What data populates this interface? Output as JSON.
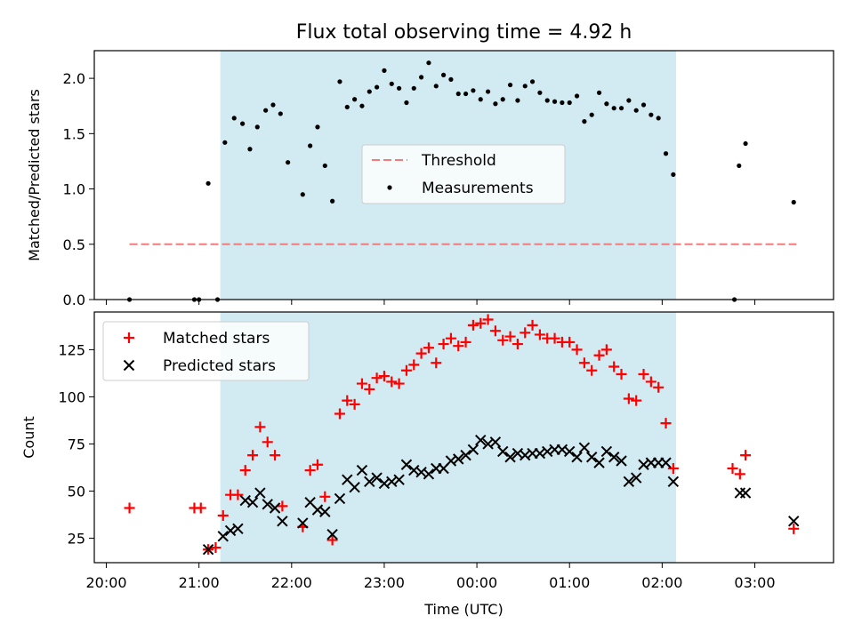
{
  "chart_data": {
    "type": "scatter",
    "title": "Flux total observing time = 4.92 h",
    "xlabel": "Time (UTC)",
    "x_unit": "hours since 20:00 UTC",
    "xlim": [
      -0.13,
      7.85
    ],
    "x_ticks": [
      {
        "value": 0,
        "label": "20:00"
      },
      {
        "value": 1,
        "label": "21:00"
      },
      {
        "value": 2,
        "label": "22:00"
      },
      {
        "value": 3,
        "label": "23:00"
      },
      {
        "value": 4,
        "label": "00:00"
      },
      {
        "value": 5,
        "label": "01:00"
      },
      {
        "value": 6,
        "label": "02:00"
      },
      {
        "value": 7,
        "label": "03:00"
      }
    ],
    "shaded_interval": {
      "start": 1.23,
      "end": 6.15,
      "color": "#add8e6"
    },
    "panels": [
      {
        "ylabel": "Matched/Predicted stars",
        "ylim": [
          0,
          2.25
        ],
        "y_ticks": [
          {
            "value": 0,
            "label": "0.0"
          },
          {
            "value": 0.5,
            "label": "0.5"
          },
          {
            "value": 1,
            "label": "1.0"
          },
          {
            "value": 1.5,
            "label": "1.5"
          },
          {
            "value": 2,
            "label": "2.0"
          }
        ],
        "legend": {
          "placement": "center",
          "entries": [
            "Threshold",
            "Measurements"
          ]
        },
        "threshold": {
          "name": "Threshold",
          "value": 0.5,
          "x_range": [
            0.25,
            7.45
          ],
          "color": "#f07c7c"
        },
        "series": [
          {
            "name": "Measurements",
            "marker": "dot",
            "color": "#000000",
            "points": [
              [
                0.25,
                0.0
              ],
              [
                0.95,
                0.0
              ],
              [
                1.0,
                0.0
              ],
              [
                1.1,
                1.05
              ],
              [
                1.2,
                0.0
              ],
              [
                1.28,
                1.42
              ],
              [
                1.38,
                1.64
              ],
              [
                1.47,
                1.59
              ],
              [
                1.55,
                1.36
              ],
              [
                1.63,
                1.56
              ],
              [
                1.72,
                1.71
              ],
              [
                1.8,
                1.76
              ],
              [
                1.88,
                1.68
              ],
              [
                1.96,
                1.24
              ],
              [
                2.12,
                0.95
              ],
              [
                2.2,
                1.39
              ],
              [
                2.28,
                1.56
              ],
              [
                2.36,
                1.21
              ],
              [
                2.44,
                0.89
              ],
              [
                2.52,
                1.97
              ],
              [
                2.6,
                1.74
              ],
              [
                2.68,
                1.81
              ],
              [
                2.76,
                1.75
              ],
              [
                2.84,
                1.88
              ],
              [
                2.92,
                1.92
              ],
              [
                3.0,
                2.07
              ],
              [
                3.08,
                1.95
              ],
              [
                3.16,
                1.91
              ],
              [
                3.24,
                1.78
              ],
              [
                3.32,
                1.91
              ],
              [
                3.4,
                2.01
              ],
              [
                3.48,
                2.14
              ],
              [
                3.56,
                1.93
              ],
              [
                3.64,
                2.03
              ],
              [
                3.72,
                1.99
              ],
              [
                3.8,
                1.86
              ],
              [
                3.88,
                1.86
              ],
              [
                3.96,
                1.89
              ],
              [
                4.04,
                1.81
              ],
              [
                4.12,
                1.88
              ],
              [
                4.2,
                1.77
              ],
              [
                4.28,
                1.81
              ],
              [
                4.36,
                1.94
              ],
              [
                4.44,
                1.8
              ],
              [
                4.52,
                1.93
              ],
              [
                4.6,
                1.97
              ],
              [
                4.68,
                1.87
              ],
              [
                4.76,
                1.8
              ],
              [
                4.84,
                1.79
              ],
              [
                4.92,
                1.78
              ],
              [
                5.0,
                1.78
              ],
              [
                5.08,
                1.84
              ],
              [
                5.16,
                1.61
              ],
              [
                5.24,
                1.67
              ],
              [
                5.32,
                1.87
              ],
              [
                5.4,
                1.77
              ],
              [
                5.48,
                1.73
              ],
              [
                5.56,
                1.73
              ],
              [
                5.64,
                1.8
              ],
              [
                5.72,
                1.71
              ],
              [
                5.8,
                1.76
              ],
              [
                5.88,
                1.67
              ],
              [
                5.96,
                1.64
              ],
              [
                6.04,
                1.32
              ],
              [
                6.12,
                1.13
              ],
              [
                6.78,
                0.0
              ],
              [
                6.83,
                1.21
              ],
              [
                6.9,
                1.41
              ],
              [
                7.42,
                0.88
              ]
            ]
          }
        ]
      },
      {
        "ylabel": "Count",
        "ylim": [
          12,
          145
        ],
        "y_ticks": [
          {
            "value": 25,
            "label": "25"
          },
          {
            "value": 50,
            "label": "50"
          },
          {
            "value": 75,
            "label": "75"
          },
          {
            "value": 100,
            "label": "100"
          },
          {
            "value": 125,
            "label": "125"
          }
        ],
        "legend": {
          "placement": "upper-left",
          "entries": [
            "Matched stars",
            "Predicted stars"
          ]
        },
        "series": [
          {
            "name": "Matched stars",
            "marker": "plus",
            "color": "#ff0000",
            "points": [
              [
                0.25,
                41
              ],
              [
                0.95,
                41
              ],
              [
                1.02,
                41
              ],
              [
                1.1,
                19
              ],
              [
                1.18,
                20
              ],
              [
                1.26,
                37
              ],
              [
                1.34,
                48
              ],
              [
                1.42,
                48
              ],
              [
                1.5,
                61
              ],
              [
                1.58,
                69
              ],
              [
                1.66,
                84
              ],
              [
                1.74,
                76
              ],
              [
                1.82,
                69
              ],
              [
                1.9,
                42
              ],
              [
                2.12,
                31
              ],
              [
                2.2,
                61
              ],
              [
                2.28,
                64
              ],
              [
                2.36,
                47
              ],
              [
                2.44,
                24
              ],
              [
                2.52,
                91
              ],
              [
                2.6,
                98
              ],
              [
                2.68,
                96
              ],
              [
                2.76,
                107
              ],
              [
                2.84,
                104
              ],
              [
                2.92,
                110
              ],
              [
                3.0,
                111
              ],
              [
                3.08,
                108
              ],
              [
                3.16,
                107
              ],
              [
                3.24,
                114
              ],
              [
                3.32,
                117
              ],
              [
                3.4,
                123
              ],
              [
                3.48,
                126
              ],
              [
                3.56,
                118
              ],
              [
                3.64,
                128
              ],
              [
                3.72,
                131
              ],
              [
                3.8,
                127
              ],
              [
                3.88,
                129
              ],
              [
                3.96,
                138
              ],
              [
                4.04,
                139
              ],
              [
                4.12,
                141
              ],
              [
                4.2,
                135
              ],
              [
                4.28,
                130
              ],
              [
                4.36,
                132
              ],
              [
                4.44,
                128
              ],
              [
                4.52,
                134
              ],
              [
                4.6,
                138
              ],
              [
                4.68,
                133
              ],
              [
                4.76,
                131
              ],
              [
                4.84,
                131
              ],
              [
                4.92,
                129
              ],
              [
                5.0,
                129
              ],
              [
                5.08,
                125
              ],
              [
                5.16,
                118
              ],
              [
                5.24,
                114
              ],
              [
                5.32,
                122
              ],
              [
                5.4,
                125
              ],
              [
                5.48,
                116
              ],
              [
                5.56,
                112
              ],
              [
                5.64,
                99
              ],
              [
                5.72,
                98
              ],
              [
                5.8,
                112
              ],
              [
                5.88,
                108
              ],
              [
                5.96,
                105
              ],
              [
                6.04,
                86
              ],
              [
                6.12,
                62
              ],
              [
                6.76,
                62
              ],
              [
                6.84,
                59
              ],
              [
                6.9,
                69
              ],
              [
                7.42,
                30
              ]
            ]
          },
          {
            "name": "Predicted stars",
            "marker": "x",
            "color": "#000000",
            "points": [
              [
                1.1,
                19
              ],
              [
                1.26,
                26
              ],
              [
                1.34,
                29
              ],
              [
                1.42,
                30
              ],
              [
                1.5,
                45
              ],
              [
                1.58,
                44
              ],
              [
                1.66,
                49
              ],
              [
                1.74,
                43
              ],
              [
                1.82,
                41
              ],
              [
                1.9,
                34
              ],
              [
                2.12,
                33
              ],
              [
                2.2,
                44
              ],
              [
                2.28,
                40
              ],
              [
                2.36,
                39
              ],
              [
                2.44,
                27
              ],
              [
                2.52,
                46
              ],
              [
                2.6,
                56
              ],
              [
                2.68,
                52
              ],
              [
                2.76,
                61
              ],
              [
                2.84,
                55
              ],
              [
                2.92,
                57
              ],
              [
                3.0,
                54
              ],
              [
                3.08,
                55
              ],
              [
                3.16,
                56
              ],
              [
                3.24,
                64
              ],
              [
                3.32,
                61
              ],
              [
                3.4,
                60
              ],
              [
                3.48,
                59
              ],
              [
                3.56,
                62
              ],
              [
                3.64,
                62
              ],
              [
                3.72,
                66
              ],
              [
                3.8,
                67
              ],
              [
                3.88,
                69
              ],
              [
                3.96,
                72
              ],
              [
                4.04,
                77
              ],
              [
                4.12,
                75
              ],
              [
                4.2,
                76
              ],
              [
                4.28,
                71
              ],
              [
                4.36,
                68
              ],
              [
                4.44,
                70
              ],
              [
                4.52,
                69
              ],
              [
                4.6,
                70
              ],
              [
                4.68,
                70
              ],
              [
                4.76,
                71
              ],
              [
                4.84,
                72
              ],
              [
                4.92,
                72
              ],
              [
                5.0,
                71
              ],
              [
                5.08,
                68
              ],
              [
                5.16,
                73
              ],
              [
                5.24,
                68
              ],
              [
                5.32,
                65
              ],
              [
                5.4,
                71
              ],
              [
                5.48,
                68
              ],
              [
                5.56,
                66
              ],
              [
                5.64,
                55
              ],
              [
                5.72,
                57
              ],
              [
                5.8,
                64
              ],
              [
                5.88,
                65
              ],
              [
                5.96,
                65
              ],
              [
                6.04,
                65
              ],
              [
                6.12,
                55
              ],
              [
                6.84,
                49
              ],
              [
                6.9,
                49
              ],
              [
                7.42,
                34
              ]
            ]
          }
        ]
      }
    ]
  }
}
